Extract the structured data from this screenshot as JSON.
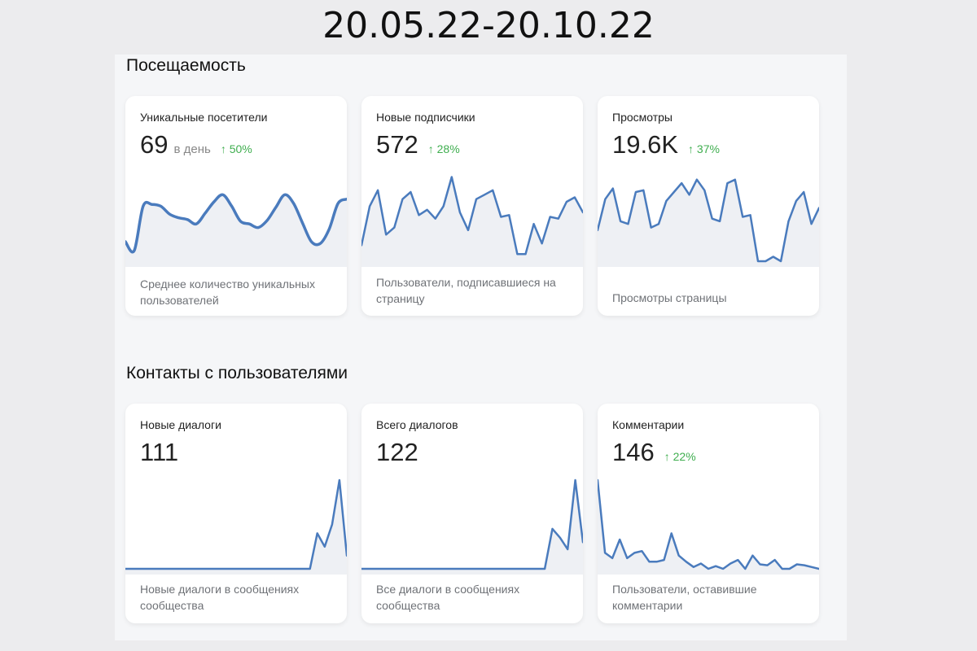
{
  "date_range": "20.05.22-20.10.22",
  "sections": {
    "attendance": {
      "title": "Посещаемость",
      "cards": [
        {
          "title": "Уникальные посетители",
          "value": "69",
          "unit": "в день",
          "delta": "↑ 50%",
          "description": "Среднее количество уникальных пользователей",
          "series": [
            0.22,
            0.12,
            0.62,
            0.64,
            0.62,
            0.53,
            0.49,
            0.47,
            0.42,
            0.54,
            0.67,
            0.75,
            0.62,
            0.45,
            0.42,
            0.38,
            0.46,
            0.61,
            0.75,
            0.65,
            0.43,
            0.22,
            0.2,
            0.36,
            0.65,
            0.7
          ]
        },
        {
          "title": "Новые подписчики",
          "value": "572",
          "unit": "",
          "delta": "↑ 28%",
          "description": "Пользователи, подписавшиеся на страницу",
          "series": [
            0.18,
            0.62,
            0.8,
            0.3,
            0.38,
            0.7,
            0.78,
            0.52,
            0.58,
            0.48,
            0.62,
            0.95,
            0.55,
            0.35,
            0.7,
            0.75,
            0.8,
            0.5,
            0.52,
            0.08,
            0.08,
            0.42,
            0.2,
            0.5,
            0.48,
            0.67,
            0.72,
            0.55
          ]
        },
        {
          "title": "Просмотры",
          "value": "19.6K",
          "unit": "",
          "delta": "↑ 37%",
          "description": "Просмотры страницы",
          "series": [
            0.35,
            0.7,
            0.82,
            0.45,
            0.42,
            0.78,
            0.8,
            0.38,
            0.42,
            0.68,
            0.78,
            0.88,
            0.75,
            0.92,
            0.8,
            0.48,
            0.45,
            0.88,
            0.92,
            0.5,
            0.52,
            0.0,
            0.0,
            0.05,
            0.0,
            0.45,
            0.68,
            0.78,
            0.42,
            0.6
          ]
        }
      ]
    },
    "contacts": {
      "title": "Контакты с пользователями",
      "cards": [
        {
          "title": "Новые диалоги",
          "value": "111",
          "unit": "",
          "delta": "",
          "description": "Новые диалоги в сообщениях сообщества",
          "series": [
            0,
            0,
            0,
            0,
            0,
            0,
            0,
            0,
            0,
            0,
            0,
            0,
            0,
            0,
            0,
            0,
            0,
            0,
            0,
            0,
            0,
            0,
            0,
            0,
            0,
            0,
            0.4,
            0.25,
            0.5,
            1.0,
            0.15
          ]
        },
        {
          "title": "Всего диалогов",
          "value": "122",
          "unit": "",
          "delta": "",
          "description": "Все диалоги в сообщениях сообщества",
          "series": [
            0,
            0,
            0,
            0,
            0,
            0,
            0,
            0,
            0,
            0,
            0,
            0,
            0,
            0,
            0,
            0,
            0,
            0,
            0,
            0,
            0,
            0,
            0,
            0,
            0,
            0.45,
            0.35,
            0.22,
            1.0,
            0.3
          ]
        },
        {
          "title": "Комментарии",
          "value": "146",
          "unit": "",
          "delta": "↑ 22%",
          "description": "Пользователи, оставившие комментарии",
          "series": [
            1.0,
            0.18,
            0.12,
            0.33,
            0.12,
            0.18,
            0.2,
            0.08,
            0.08,
            0.1,
            0.4,
            0.15,
            0.08,
            0.02,
            0.06,
            0.0,
            0.03,
            0.0,
            0.06,
            0.1,
            0.0,
            0.15,
            0.05,
            0.04,
            0.1,
            0.0,
            0.0,
            0.05,
            0.04,
            0.02,
            0.0
          ]
        }
      ]
    }
  },
  "colors": {
    "line": "#4a7bbd",
    "area": "#eef0f4",
    "delta": "#3fae4f"
  }
}
